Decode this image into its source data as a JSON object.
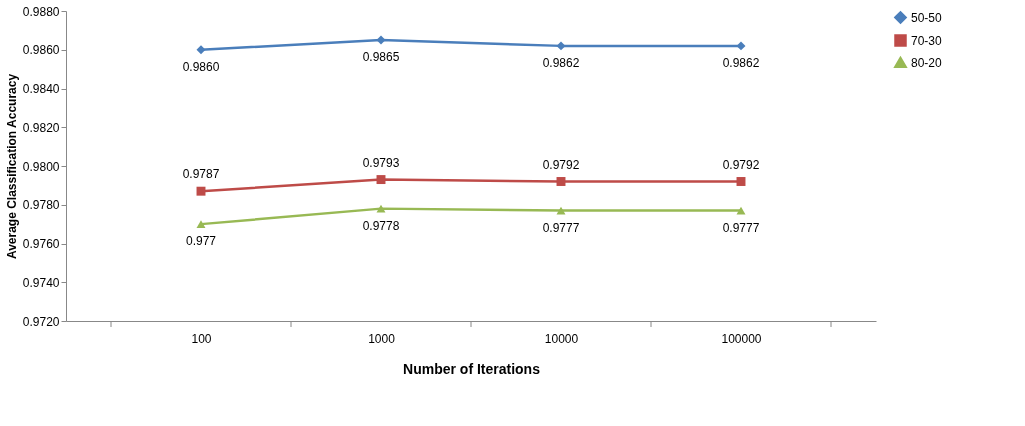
{
  "chart_data": {
    "type": "line",
    "xlabel": "Number of Iterations",
    "ylabel": "Average Classification Accuracy",
    "categories": [
      "100",
      "1000",
      "10000",
      "100000"
    ],
    "series": [
      {
        "name": "50-50",
        "color": "#4a7ebb",
        "marker": "diamond",
        "values": [
          0.986,
          0.9865,
          0.9862,
          0.9862
        ],
        "value_labels": [
          "0.9860",
          "0.9865",
          "0.9862",
          "0.9862"
        ]
      },
      {
        "name": "70-30",
        "color": "#be4b48",
        "marker": "square",
        "values": [
          0.9787,
          0.9793,
          0.9792,
          0.9792
        ],
        "value_labels": [
          "0.9787",
          "0.9793",
          "0.9792",
          "0.9792"
        ]
      },
      {
        "name": "80-20",
        "color": "#98b954",
        "marker": "triangle",
        "values": [
          0.977,
          0.9778,
          0.9777,
          0.9777
        ],
        "value_labels": [
          "0.977",
          "0.9778",
          "0.9777",
          "0.9777"
        ]
      }
    ],
    "ylim": [
      0.972,
      0.988
    ],
    "yticks": [
      {
        "value": 0.972,
        "label": "0.9720"
      },
      {
        "value": 0.974,
        "label": "0.9740"
      },
      {
        "value": 0.976,
        "label": "0.9760"
      },
      {
        "value": 0.978,
        "label": "0.9780"
      },
      {
        "value": 0.98,
        "label": "0.9800"
      },
      {
        "value": 0.982,
        "label": "0.9820"
      },
      {
        "value": 0.984,
        "label": "0.9840"
      },
      {
        "value": 0.986,
        "label": "0.9860"
      },
      {
        "value": 0.988,
        "label": "0.9880"
      }
    ],
    "grid": false,
    "legend": "right"
  }
}
